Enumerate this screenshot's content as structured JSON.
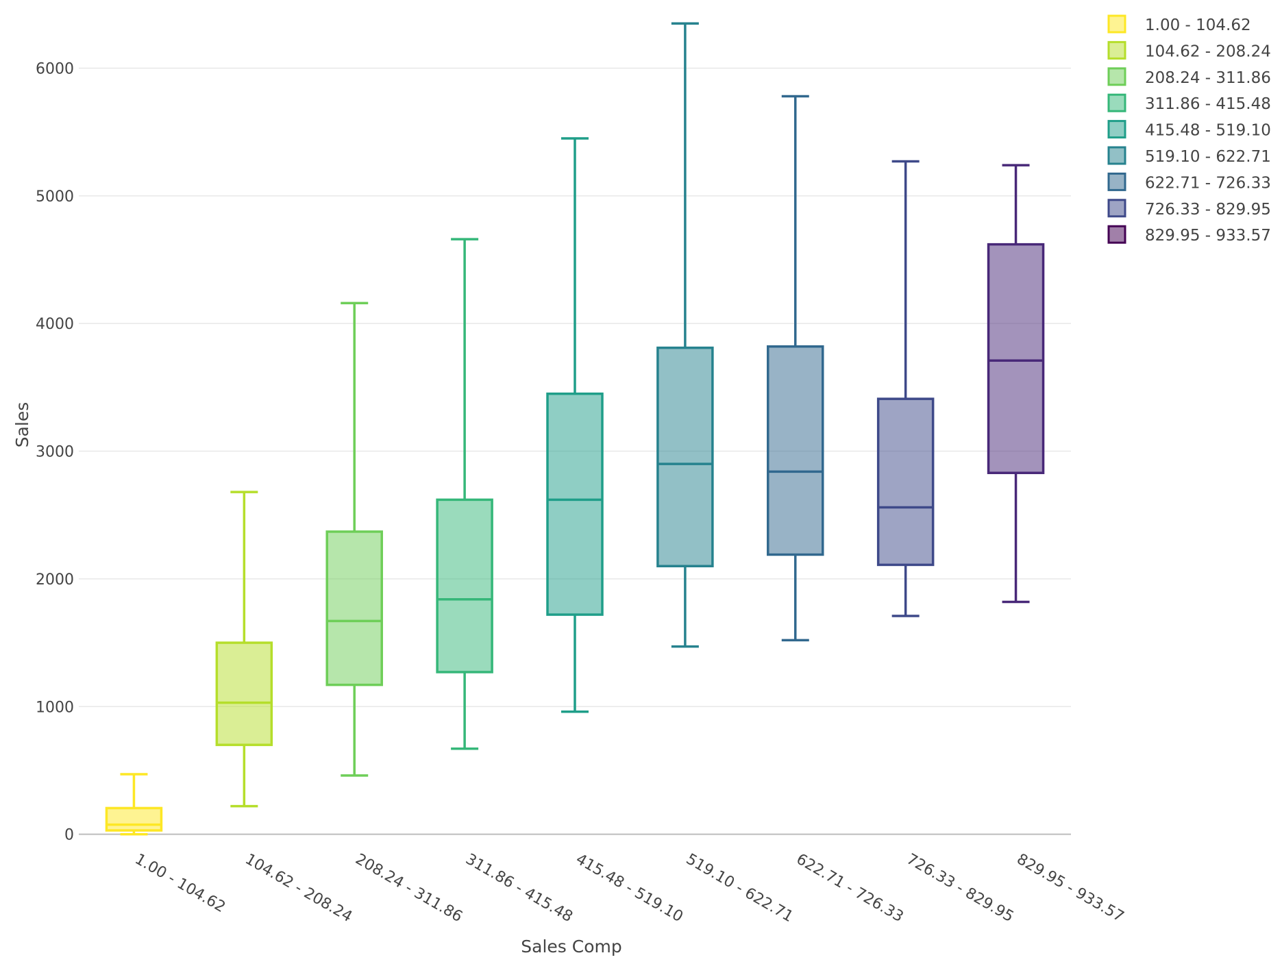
{
  "chart_data": {
    "type": "box",
    "xlabel": "Sales Comp",
    "ylabel": "Sales",
    "ylim": [
      -120,
      6480
    ],
    "yticks": [
      0,
      1000,
      2000,
      3000,
      4000,
      5000,
      6000
    ],
    "grid": true,
    "legend_position": "top-right",
    "categories": [
      "1.00 - 104.62",
      "104.62 - 208.24",
      "208.24 - 311.86",
      "311.86 - 415.48",
      "415.48 - 519.10",
      "519.10 - 622.71",
      "622.71 - 726.33",
      "726.33 - 829.95",
      "829.95 - 933.57"
    ],
    "series": [
      {
        "name": "1.00 - 104.62",
        "color": "#fde725",
        "min": 0,
        "q1": 30,
        "median": 75,
        "q3": 205,
        "max": 470
      },
      {
        "name": "104.62 - 208.24",
        "color": "#b5de2b",
        "min": 220,
        "q1": 700,
        "median": 1030,
        "q3": 1500,
        "max": 2680
      },
      {
        "name": "208.24 - 311.86",
        "color": "#6ece58",
        "min": 460,
        "q1": 1170,
        "median": 1670,
        "q3": 2370,
        "max": 4160
      },
      {
        "name": "311.86 - 415.48",
        "color": "#35b779",
        "min": 670,
        "q1": 1270,
        "median": 1840,
        "q3": 2620,
        "max": 4660
      },
      {
        "name": "415.48 - 519.10",
        "color": "#1f9e89",
        "min": 960,
        "q1": 1720,
        "median": 2620,
        "q3": 3450,
        "max": 5450
      },
      {
        "name": "519.10 - 622.71",
        "color": "#26828e",
        "min": 1470,
        "q1": 2100,
        "median": 2900,
        "q3": 3810,
        "max": 6350
      },
      {
        "name": "622.71 - 726.33",
        "color": "#31688e",
        "min": 1520,
        "q1": 2190,
        "median": 2840,
        "q3": 3820,
        "max": 5780
      },
      {
        "name": "726.33 - 829.95",
        "color": "#3e4989",
        "min": 1710,
        "q1": 2110,
        "median": 2560,
        "q3": 3410,
        "max": 5270
      },
      {
        "name": "829.95 - 933.57",
        "color": "#482878",
        "min": 1820,
        "q1": 2830,
        "median": 3710,
        "q3": 4620,
        "max": 5240
      }
    ],
    "legend_colors": [
      "#fde725",
      "#b5de2b",
      "#6ece58",
      "#35b779",
      "#1f9e89",
      "#26828e",
      "#31688e",
      "#3e4989",
      "#440154"
    ]
  }
}
